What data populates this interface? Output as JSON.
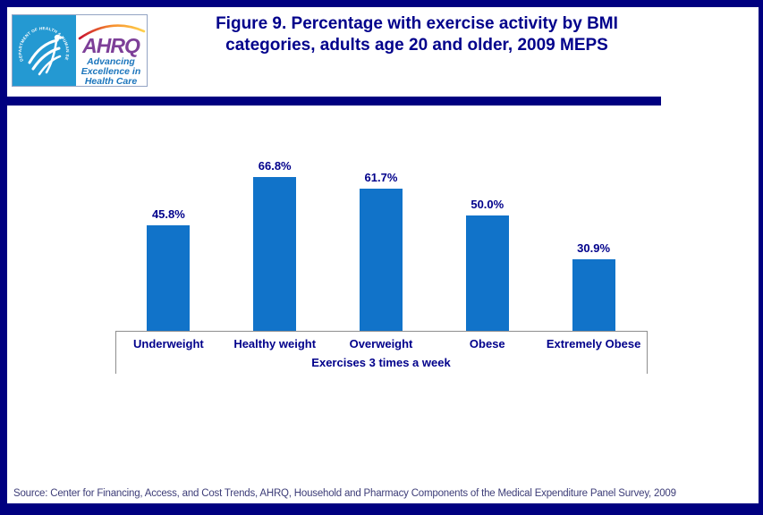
{
  "page": {
    "background": "#FFFFFF",
    "frame_color": "#000080"
  },
  "header": {
    "logo": {
      "seal_text": "DEPARTMENT OF HEALTH & HUMAN SERVICES • USA",
      "org": "AHRQ",
      "tagline_lines": [
        "Advancing",
        "Excellence in",
        "Health Care"
      ],
      "seal_bg_color": "#2499D2",
      "org_color": "#7D3F98",
      "tagline_color": "#1B75BC"
    },
    "title_line1": "Figure 9. Percentage with exercise activity by BMI",
    "title_line2": "categories, adults age 20 and older, 2009 MEPS",
    "title_color": "#00008B"
  },
  "chart_data": {
    "type": "bar",
    "categories": [
      "Underweight",
      "Healthy weight",
      "Overweight",
      "Obese",
      "Extremely Obese"
    ],
    "values": [
      45.8,
      66.8,
      61.7,
      50.0,
      30.9
    ],
    "value_labels": [
      "45.8%",
      "66.8%",
      "61.7%",
      "50.0%",
      "30.9%"
    ],
    "title": "Figure 9. Percentage with exercise activity by BMI categories, adults age 20 and older, 2009 MEPS",
    "xlabel": "Exercises 3 times a week",
    "ylabel": "",
    "ylim": [
      0,
      80
    ],
    "grid": false,
    "legend": false,
    "bar_color": "#1173C9",
    "value_label_color": "#00008B",
    "category_label_color": "#00008B",
    "axis_color": "#8E8E8E"
  },
  "footer": {
    "source": "Source: Center for Financing, Access, and Cost Trends, AHRQ, Household and Pharmacy Components of the Medical Expenditure Panel Survey, 2009"
  }
}
